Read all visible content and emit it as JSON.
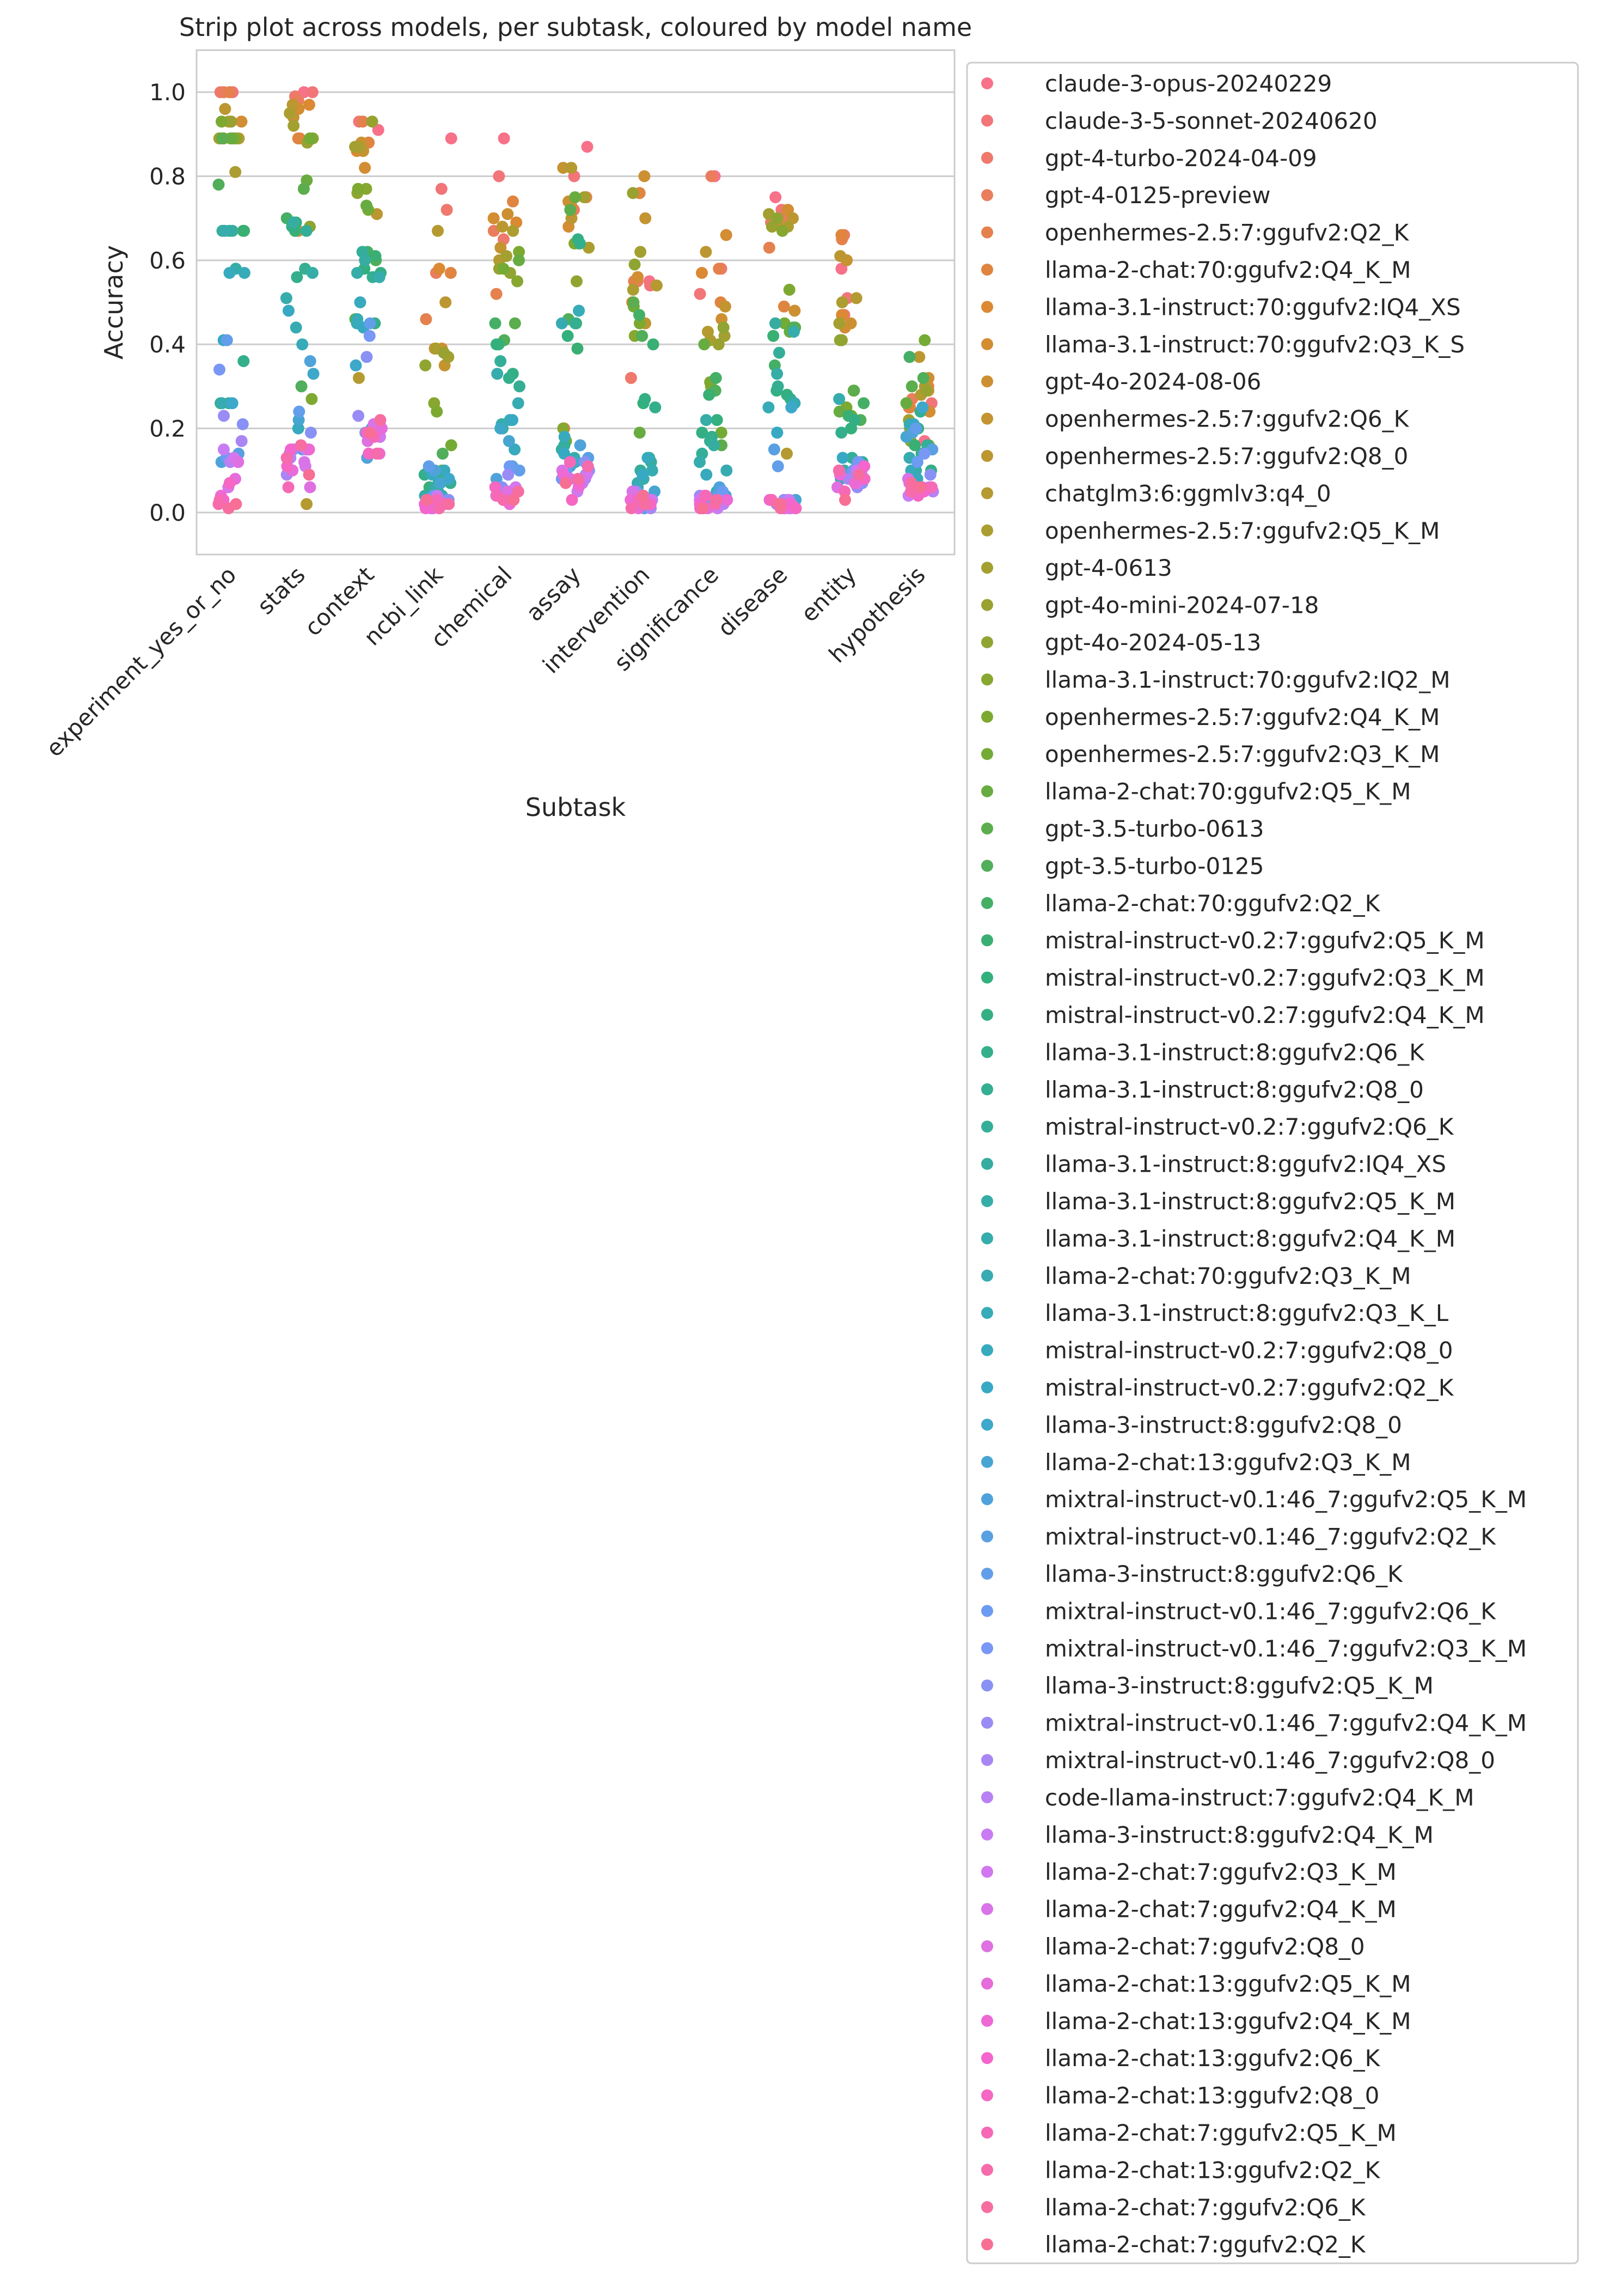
{
  "chart_data": {
    "type": "strip",
    "title": "Strip plot across models, per subtask, coloured by model name",
    "xlabel": "Subtask",
    "ylabel": "Accuracy",
    "ylim": [
      -0.1,
      1.1
    ],
    "yticks": [
      "0.0",
      "0.2",
      "0.4",
      "0.6",
      "0.8",
      "1.0"
    ],
    "grid": true,
    "legend_placement": "outside-right",
    "categories": [
      "experiment_yes_or_no",
      "stats",
      "context",
      "ncbi_link",
      "chemical",
      "assay",
      "intervention",
      "significance",
      "disease",
      "entity",
      "hypothesis"
    ],
    "palette_anchors": [
      "#f77189",
      "#dc8932",
      "#ae9d31",
      "#77ab31",
      "#33b07a",
      "#36ada4",
      "#38a9c5",
      "#6e9bf4",
      "#cc7af4",
      "#f565cc"
    ],
    "series": [
      {
        "name": "claude-3-opus-20240229"
      },
      {
        "name": "claude-3-5-sonnet-20240620"
      },
      {
        "name": "gpt-4-turbo-2024-04-09"
      },
      {
        "name": "gpt-4-0125-preview"
      },
      {
        "name": "openhermes-2.5:7:ggufv2:Q2_K"
      },
      {
        "name": "llama-2-chat:70:ggufv2:Q4_K_M"
      },
      {
        "name": "llama-3.1-instruct:70:ggufv2:IQ4_XS"
      },
      {
        "name": "llama-3.1-instruct:70:ggufv2:Q3_K_S"
      },
      {
        "name": "gpt-4o-2024-08-06"
      },
      {
        "name": "openhermes-2.5:7:ggufv2:Q6_K"
      },
      {
        "name": "openhermes-2.5:7:ggufv2:Q8_0"
      },
      {
        "name": "chatglm3:6:ggmlv3:q4_0"
      },
      {
        "name": "openhermes-2.5:7:ggufv2:Q5_K_M"
      },
      {
        "name": "gpt-4-0613"
      },
      {
        "name": "gpt-4o-mini-2024-07-18"
      },
      {
        "name": "gpt-4o-2024-05-13"
      },
      {
        "name": "llama-3.1-instruct:70:ggufv2:IQ2_M"
      },
      {
        "name": "openhermes-2.5:7:ggufv2:Q4_K_M"
      },
      {
        "name": "openhermes-2.5:7:ggufv2:Q3_K_M"
      },
      {
        "name": "llama-2-chat:70:ggufv2:Q5_K_M"
      },
      {
        "name": "gpt-3.5-turbo-0613"
      },
      {
        "name": "gpt-3.5-turbo-0125"
      },
      {
        "name": "llama-2-chat:70:ggufv2:Q2_K"
      },
      {
        "name": "mistral-instruct-v0.2:7:ggufv2:Q5_K_M"
      },
      {
        "name": "mistral-instruct-v0.2:7:ggufv2:Q3_K_M"
      },
      {
        "name": "mistral-instruct-v0.2:7:ggufv2:Q4_K_M"
      },
      {
        "name": "llama-3.1-instruct:8:ggufv2:Q6_K"
      },
      {
        "name": "llama-3.1-instruct:8:ggufv2:Q8_0"
      },
      {
        "name": "mistral-instruct-v0.2:7:ggufv2:Q6_K"
      },
      {
        "name": "llama-3.1-instruct:8:ggufv2:IQ4_XS"
      },
      {
        "name": "llama-3.1-instruct:8:ggufv2:Q5_K_M"
      },
      {
        "name": "llama-3.1-instruct:8:ggufv2:Q4_K_M"
      },
      {
        "name": "llama-2-chat:70:ggufv2:Q3_K_M"
      },
      {
        "name": "llama-3.1-instruct:8:ggufv2:Q3_K_L"
      },
      {
        "name": "mistral-instruct-v0.2:7:ggufv2:Q8_0"
      },
      {
        "name": "mistral-instruct-v0.2:7:ggufv2:Q2_K"
      },
      {
        "name": "llama-3-instruct:8:ggufv2:Q8_0"
      },
      {
        "name": "llama-2-chat:13:ggufv2:Q3_K_M"
      },
      {
        "name": "mixtral-instruct-v0.1:46_7:ggufv2:Q5_K_M"
      },
      {
        "name": "mixtral-instruct-v0.1:46_7:ggufv2:Q2_K"
      },
      {
        "name": "llama-3-instruct:8:ggufv2:Q6_K"
      },
      {
        "name": "mixtral-instruct-v0.1:46_7:ggufv2:Q6_K"
      },
      {
        "name": "mixtral-instruct-v0.1:46_7:ggufv2:Q3_K_M"
      },
      {
        "name": "llama-3-instruct:8:ggufv2:Q5_K_M"
      },
      {
        "name": "mixtral-instruct-v0.1:46_7:ggufv2:Q4_K_M"
      },
      {
        "name": "mixtral-instruct-v0.1:46_7:ggufv2:Q8_0"
      },
      {
        "name": "code-llama-instruct:7:ggufv2:Q4_K_M"
      },
      {
        "name": "llama-3-instruct:8:ggufv2:Q4_K_M"
      },
      {
        "name": "llama-2-chat:7:ggufv2:Q3_K_M"
      },
      {
        "name": "llama-2-chat:7:ggufv2:Q4_K_M"
      },
      {
        "name": "llama-2-chat:7:ggufv2:Q8_0"
      },
      {
        "name": "llama-2-chat:13:ggufv2:Q5_K_M"
      },
      {
        "name": "llama-2-chat:13:ggufv2:Q4_K_M"
      },
      {
        "name": "llama-2-chat:13:ggufv2:Q6_K"
      },
      {
        "name": "llama-2-chat:13:ggufv2:Q8_0"
      },
      {
        "name": "llama-2-chat:7:ggufv2:Q5_K_M"
      },
      {
        "name": "llama-2-chat:13:ggufv2:Q2_K"
      },
      {
        "name": "llama-2-chat:7:ggufv2:Q6_K"
      },
      {
        "name": "llama-2-chat:7:ggufv2:Q2_K"
      }
    ],
    "values_by_category": {
      "experiment_yes_or_no": [
        1.0,
        1.0,
        1.0,
        1.0,
        1.0,
        0.93,
        0.89,
        0.93,
        0.89,
        0.93,
        0.96,
        0.89,
        0.81,
        0.89,
        0.93,
        0.89,
        0.89,
        0.93,
        0.89,
        0.89,
        0.89,
        0.78,
        0.67,
        0.67,
        0.26,
        0.67,
        0.36,
        0.67,
        0.26,
        0.67,
        0.58,
        0.67,
        0.26,
        0.57,
        0.57,
        0.41,
        0.26,
        0.13,
        0.12,
        0.14,
        0.41,
        0.13,
        0.34,
        0.21,
        0.23,
        0.17,
        0.12,
        0.15,
        0.13,
        0.06,
        0.12,
        0.08,
        0.04,
        0.03,
        0.07,
        0.03,
        0.02,
        0.01,
        0.02
      ],
      "stats": [
        1.0,
        1.0,
        0.99,
        0.98,
        0.89,
        0.89,
        0.97,
        0.96,
        0.67,
        0.94,
        0.97,
        0.02,
        0.95,
        0.92,
        0.88,
        0.68,
        0.89,
        0.27,
        0.89,
        0.79,
        0.77,
        0.3,
        0.7,
        0.67,
        0.69,
        0.68,
        0.56,
        0.58,
        0.67,
        0.69,
        0.57,
        0.51,
        0.44,
        0.4,
        0.2,
        0.48,
        0.33,
        0.22,
        0.36,
        0.15,
        0.24,
        0.14,
        0.15,
        0.19,
        0.15,
        0.09,
        0.13,
        0.15,
        0.11,
        0.12,
        0.06,
        0.1,
        0.15,
        0.15,
        0.11,
        0.06,
        0.13,
        0.16,
        0.09
      ],
      "context": [
        0.91,
        0.93,
        0.88,
        0.87,
        0.93,
        0.88,
        0.86,
        0.82,
        0.88,
        0.86,
        0.71,
        0.32,
        0.87,
        0.87,
        0.93,
        0.76,
        0.77,
        0.77,
        0.72,
        0.73,
        0.46,
        0.6,
        0.62,
        0.61,
        0.58,
        0.57,
        0.45,
        0.56,
        0.62,
        0.6,
        0.57,
        0.56,
        0.46,
        0.45,
        0.5,
        0.44,
        0.35,
        0.2,
        0.13,
        0.19,
        0.45,
        0.18,
        0.42,
        0.37,
        0.23,
        0.21,
        0.2,
        0.19,
        0.18,
        0.21,
        0.17,
        0.2,
        0.14,
        0.19,
        0.14,
        0.18,
        0.14,
        0.22,
        0.19
      ],
      "ncbi_link": [
        0.89,
        0.77,
        0.72,
        0.57,
        0.46,
        0.57,
        0.58,
        0.39,
        0.39,
        0.35,
        0.5,
        0.67,
        0.39,
        0.37,
        0.38,
        0.35,
        0.26,
        0.24,
        0.16,
        0.1,
        0.02,
        0.14,
        0.1,
        0.06,
        0.08,
        0.05,
        0.09,
        0.07,
        0.05,
        0.04,
        0.06,
        0.02,
        0.04,
        0.1,
        0.1,
        0.09,
        0.08,
        0.07,
        0.1,
        0.03,
        0.11,
        0.04,
        0.02,
        0.03,
        0.02,
        0.03,
        0.02,
        0.04,
        0.01,
        0.02,
        0.03,
        0.01,
        0.02,
        0.01,
        0.02,
        0.03,
        0.01,
        0.02,
        0.03
      ],
      "chemical": [
        0.89,
        0.8,
        0.65,
        0.67,
        0.52,
        0.74,
        0.69,
        0.7,
        0.71,
        0.63,
        0.68,
        0.6,
        0.67,
        0.61,
        0.58,
        0.57,
        0.55,
        0.62,
        0.58,
        0.6,
        0.45,
        0.41,
        0.45,
        0.4,
        0.4,
        0.33,
        0.32,
        0.3,
        0.36,
        0.2,
        0.21,
        0.33,
        0.26,
        0.22,
        0.15,
        0.22,
        0.2,
        0.17,
        0.08,
        0.11,
        0.1,
        0.11,
        0.05,
        0.06,
        0.09,
        0.05,
        0.04,
        0.03,
        0.06,
        0.04,
        0.05,
        0.03,
        0.02,
        0.03,
        0.06,
        0.04,
        0.03,
        0.05,
        0.03
      ],
      "assay": [
        0.87,
        0.8,
        0.75,
        0.72,
        0.2,
        0.75,
        0.73,
        0.68,
        0.74,
        0.82,
        0.7,
        0.82,
        0.63,
        0.75,
        0.64,
        0.55,
        0.2,
        0.64,
        0.17,
        0.75,
        0.72,
        0.46,
        0.45,
        0.39,
        0.42,
        0.65,
        0.64,
        0.45,
        0.16,
        0.15,
        0.12,
        0.13,
        0.45,
        0.48,
        0.18,
        0.14,
        0.11,
        0.12,
        0.16,
        0.13,
        0.09,
        0.1,
        0.08,
        0.12,
        0.1,
        0.08,
        0.07,
        0.05,
        0.09,
        0.1,
        0.08,
        0.06,
        0.09,
        0.07,
        0.03,
        0.12,
        0.11,
        0.08,
        0.07
      ],
      "intervention": [
        0.55,
        0.54,
        0.32,
        0.55,
        0.55,
        0.76,
        0.5,
        0.56,
        0.8,
        0.7,
        0.45,
        0.54,
        0.53,
        0.62,
        0.76,
        0.59,
        0.42,
        0.45,
        0.49,
        0.19,
        0.5,
        0.42,
        0.47,
        0.4,
        0.26,
        0.27,
        0.25,
        0.13,
        0.1,
        0.12,
        0.08,
        0.07,
        0.1,
        0.06,
        0.13,
        0.09,
        0.04,
        0.05,
        0.03,
        0.01,
        0.02,
        0.04,
        0.03,
        0.02,
        0.05,
        0.01,
        0.02,
        0.04,
        0.03,
        0.05,
        0.02,
        0.01,
        0.03,
        0.04,
        0.02,
        0.03,
        0.01,
        0.02,
        0.04
      ],
      "significance": [
        0.8,
        0.52,
        0.58,
        0.8,
        0.58,
        0.5,
        0.57,
        0.66,
        0.46,
        0.49,
        0.62,
        0.43,
        0.41,
        0.42,
        0.4,
        0.44,
        0.3,
        0.31,
        0.19,
        0.4,
        0.16,
        0.29,
        0.32,
        0.28,
        0.22,
        0.19,
        0.18,
        0.17,
        0.14,
        0.16,
        0.22,
        0.12,
        0.1,
        0.05,
        0.09,
        0.03,
        0.04,
        0.02,
        0.06,
        0.04,
        0.03,
        0.05,
        0.02,
        0.01,
        0.04,
        0.03,
        0.02,
        0.01,
        0.03,
        0.02,
        0.04,
        0.01,
        0.03,
        0.02,
        0.01,
        0.04,
        0.02,
        0.03,
        0.01
      ],
      "disease": [
        0.75,
        0.72,
        0.69,
        0.7,
        0.63,
        0.49,
        0.72,
        0.72,
        0.48,
        0.69,
        0.7,
        0.14,
        0.68,
        0.71,
        0.68,
        0.7,
        0.67,
        0.53,
        0.45,
        0.43,
        0.44,
        0.44,
        0.35,
        0.42,
        0.28,
        0.29,
        0.27,
        0.3,
        0.38,
        0.45,
        0.33,
        0.43,
        0.26,
        0.25,
        0.19,
        0.19,
        0.25,
        0.03,
        0.02,
        0.15,
        0.11,
        0.03,
        0.01,
        0.02,
        0.03,
        0.02,
        0.01,
        0.03,
        0.02,
        0.01,
        0.02,
        0.01,
        0.03,
        0.02,
        0.01,
        0.03,
        0.02,
        0.01,
        0.02
      ],
      "entity": [
        0.58,
        0.51,
        0.47,
        0.66,
        0.65,
        0.66,
        0.47,
        0.44,
        0.45,
        0.6,
        0.61,
        0.51,
        0.5,
        0.45,
        0.41,
        0.41,
        0.29,
        0.25,
        0.23,
        0.24,
        0.29,
        0.22,
        0.26,
        0.23,
        0.2,
        0.22,
        0.19,
        0.12,
        0.13,
        0.1,
        0.08,
        0.27,
        0.08,
        0.09,
        0.07,
        0.13,
        0.12,
        0.11,
        0.1,
        0.09,
        0.08,
        0.1,
        0.12,
        0.07,
        0.06,
        0.08,
        0.09,
        0.07,
        0.1,
        0.08,
        0.06,
        0.09,
        0.07,
        0.11,
        0.08,
        0.05,
        0.1,
        0.09,
        0.03
      ],
      "hypothesis": [
        0.17,
        0.26,
        0.25,
        0.27,
        0.3,
        0.25,
        0.37,
        0.24,
        0.32,
        0.29,
        0.37,
        0.28,
        0.3,
        0.22,
        0.29,
        0.17,
        0.2,
        0.16,
        0.41,
        0.26,
        0.3,
        0.32,
        0.37,
        0.16,
        0.2,
        0.1,
        0.14,
        0.24,
        0.16,
        0.1,
        0.05,
        0.21,
        0.13,
        0.1,
        0.08,
        0.21,
        0.25,
        0.18,
        0.19,
        0.15,
        0.2,
        0.12,
        0.14,
        0.09,
        0.06,
        0.07,
        0.05,
        0.04,
        0.06,
        0.08,
        0.05,
        0.07,
        0.06,
        0.05,
        0.04,
        0.06,
        0.05,
        0.07,
        0.06
      ]
    }
  }
}
